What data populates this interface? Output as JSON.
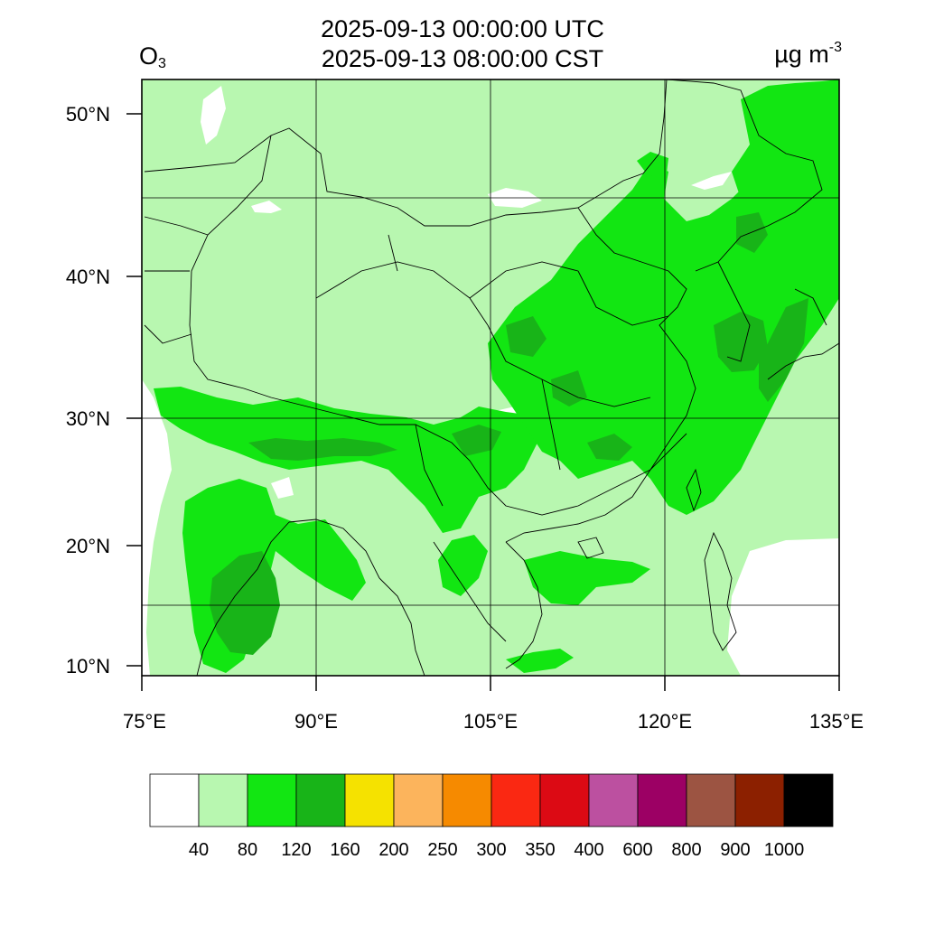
{
  "title": {
    "utc": "2025-09-13 00:00:00 UTC",
    "cst": "2025-09-13 08:00:00 CST"
  },
  "species": {
    "main": "O",
    "sub": "3"
  },
  "units": {
    "main": "µg m",
    "sup": "-3"
  },
  "map": {
    "lon_range": [
      75,
      135
    ],
    "lat_range": [
      9,
      52
    ],
    "lon_ticks": [
      "75°E",
      "90°E",
      "105°E",
      "120°E",
      "135°E"
    ],
    "lat_ticks": [
      "10°N",
      "20°N",
      "30°N",
      "40°N",
      "50°N"
    ],
    "background_color": "#b8f7b0"
  },
  "legend": {
    "colors": [
      "#ffffff",
      "#b8f7b0",
      "#12e612",
      "#18b418",
      "#f5e200",
      "#fcb45c",
      "#f68a00",
      "#fa2812",
      "#dc0a14",
      "#bc50a0",
      "#9c0064",
      "#9c5442",
      "#8c2000",
      "#000000"
    ],
    "labels": [
      "40",
      "80",
      "120",
      "160",
      "200",
      "250",
      "300",
      "350",
      "400",
      "600",
      "800",
      "900",
      "1000"
    ]
  }
}
